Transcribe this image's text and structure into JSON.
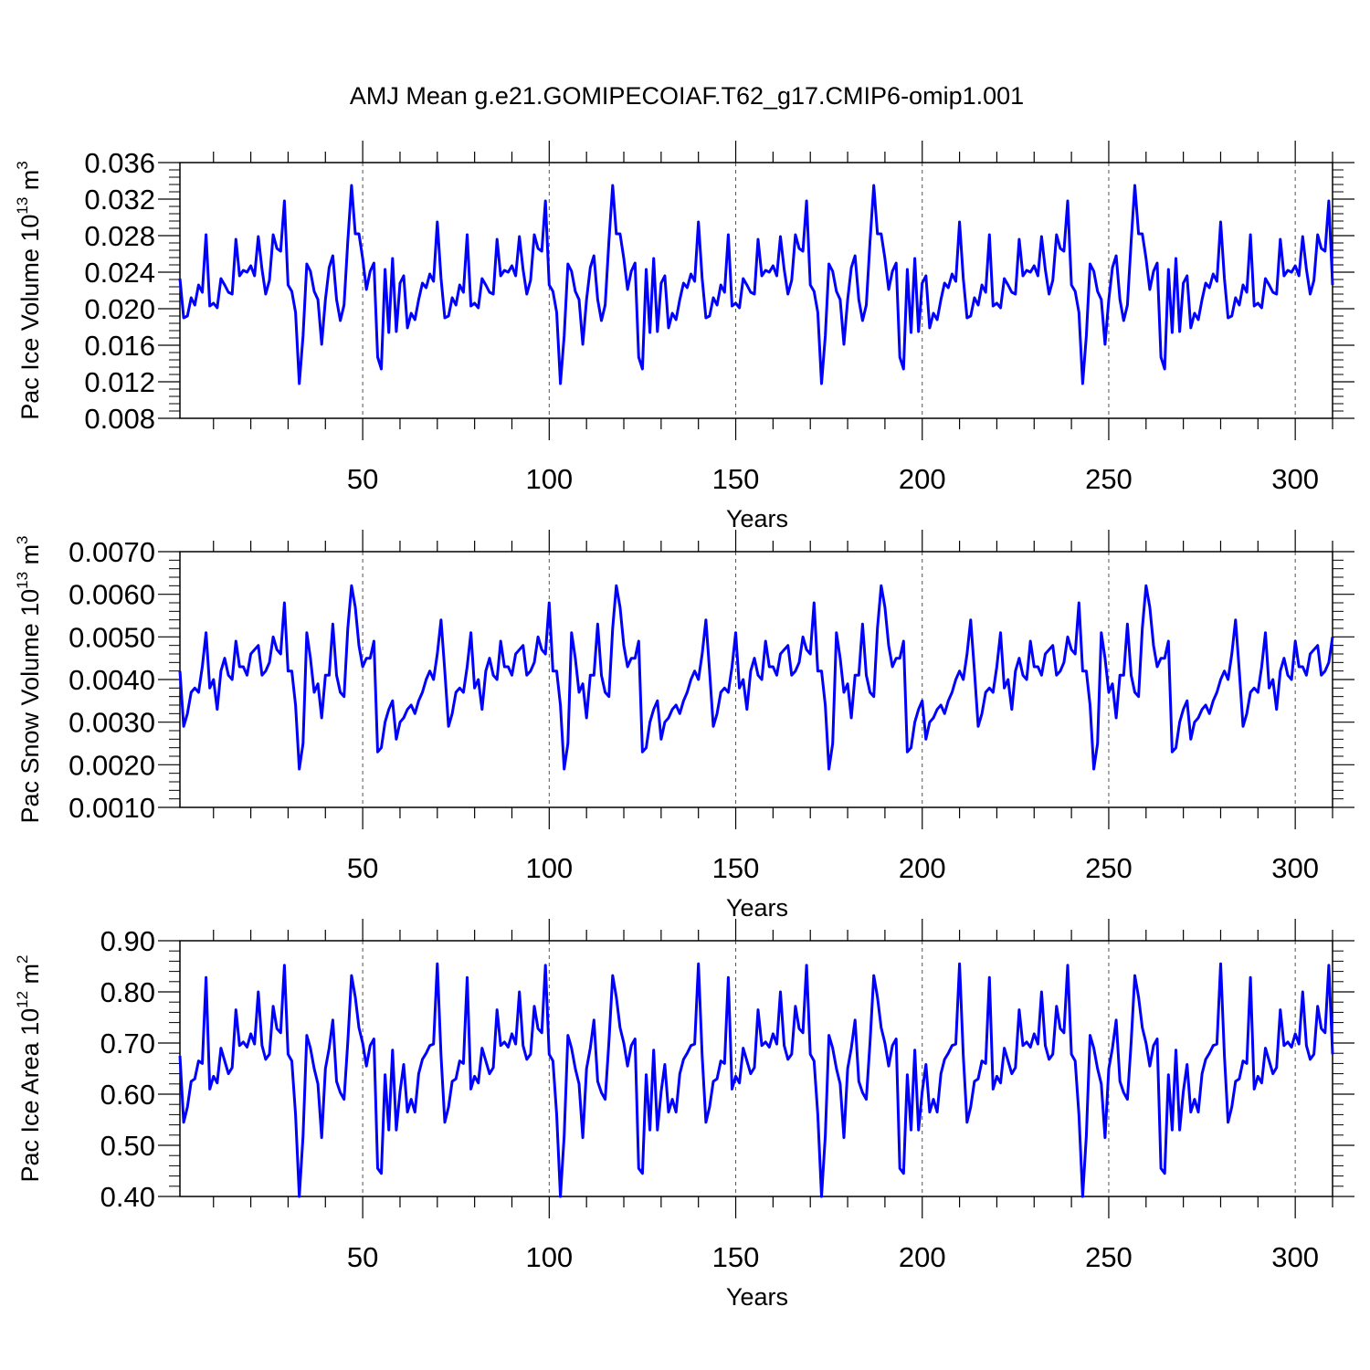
{
  "chart_data": [
    {
      "type": "line",
      "title": "AMJ Mean g.e21.GOMIPECOIAF.T62_g17.CMIP6-omip1.001",
      "xlabel": "Years",
      "ylabel": {
        "pre": "Pac Ice Volume 10",
        "sup": "13",
        "post": " m",
        "sup2": "3"
      },
      "xlim": [
        1,
        310
      ],
      "ylim": [
        0.008,
        0.036
      ],
      "xticks": [
        50,
        100,
        150,
        200,
        250,
        300
      ],
      "xtick_labels": [
        "50",
        "100",
        "150",
        "200",
        "250",
        "300"
      ],
      "yticks": [
        0.008,
        0.012,
        0.016,
        0.02,
        0.024,
        0.028,
        0.032,
        0.036
      ],
      "ytick_labels": [
        "0.008",
        "0.012",
        "0.016",
        "0.020",
        "0.024",
        "0.028",
        "0.032",
        "0.036"
      ],
      "grid": "dashed vertical at major x ticks",
      "line_color": "#0000ff",
      "series": [
        {
          "name": "Pac Ice Volume",
          "template": [
            0.0233,
            0.019,
            0.0192,
            0.0212,
            0.0204,
            0.0226,
            0.0218,
            0.0281,
            0.0203,
            0.0206,
            0.0201,
            0.0233,
            0.0226,
            0.0218,
            0.0216,
            0.0276,
            0.0236,
            0.0242,
            0.024,
            0.0247,
            0.0236,
            0.0279,
            0.0243,
            0.0216,
            0.0231,
            0.0281,
            0.0266,
            0.0263,
            0.0318,
            0.0226,
            0.0219,
            0.0196,
            0.0118,
            0.017,
            0.0249,
            0.0241,
            0.0219,
            0.021,
            0.0161,
            0.021,
            0.0245,
            0.0258,
            0.021,
            0.0187,
            0.0204,
            0.0274,
            0.0335,
            0.0282,
            0.0282,
            0.0255,
            0.0221,
            0.0241,
            0.025,
            0.0147,
            0.0134,
            0.0243,
            0.0174,
            0.0255,
            0.0175,
            0.0228,
            0.0236,
            0.0179,
            0.0195,
            0.0188,
            0.021,
            0.0228,
            0.0223,
            0.0238,
            0.023,
            0.0295
          ]
        }
      ]
    },
    {
      "type": "line",
      "title": "",
      "xlabel": "Years",
      "ylabel": {
        "pre": "Pac Snow Volume 10",
        "sup": "13",
        "post": " m",
        "sup2": "3"
      },
      "xlim": [
        1,
        310
      ],
      "ylim": [
        0.001,
        0.007
      ],
      "xticks": [
        50,
        100,
        150,
        200,
        250,
        300
      ],
      "xtick_labels": [
        "50",
        "100",
        "150",
        "200",
        "250",
        "300"
      ],
      "yticks": [
        0.001,
        0.002,
        0.003,
        0.004,
        0.005,
        0.006,
        0.007
      ],
      "ytick_labels": [
        "0.0010",
        "0.0020",
        "0.0030",
        "0.0040",
        "0.0050",
        "0.0060",
        "0.0070"
      ],
      "grid": "dashed vertical at major x ticks",
      "line_color": "#0000ff",
      "series": [
        {
          "name": "Pac Snow Volume",
          "template": [
            0.0042,
            0.0029,
            0.0032,
            0.0037,
            0.0038,
            0.0037,
            0.0043,
            0.0051,
            0.0038,
            0.004,
            0.0033,
            0.0042,
            0.0045,
            0.0041,
            0.004,
            0.0049,
            0.0043,
            0.0043,
            0.0041,
            0.0046,
            0.0047,
            0.0048,
            0.0041,
            0.0042,
            0.0044,
            0.005,
            0.0047,
            0.0046,
            0.0058,
            0.0042,
            0.0042,
            0.0034,
            0.0019,
            0.0025,
            0.0051,
            0.0045,
            0.0037,
            0.0039,
            0.0031,
            0.0041,
            0.0041,
            0.0053,
            0.0041,
            0.0037,
            0.0036,
            0.0052,
            0.0062,
            0.0057,
            0.0048,
            0.0043,
            0.0045,
            0.0045,
            0.0049,
            0.0023,
            0.0024,
            0.003,
            0.0033,
            0.0035,
            0.0026,
            0.003,
            0.0031,
            0.0033,
            0.0034,
            0.0032,
            0.0035,
            0.0037,
            0.004,
            0.0042,
            0.004,
            0.0046,
            0.0054
          ]
        }
      ]
    },
    {
      "type": "line",
      "title": "",
      "xlabel": "Years",
      "ylabel": {
        "pre": "Pac Ice Area 10",
        "sup": "12",
        "post": " m",
        "sup2": "2"
      },
      "xlim": [
        1,
        310
      ],
      "ylim": [
        0.4,
        0.9
      ],
      "xticks": [
        50,
        100,
        150,
        200,
        250,
        300
      ],
      "xtick_labels": [
        "50",
        "100",
        "150",
        "200",
        "250",
        "300"
      ],
      "yticks": [
        0.4,
        0.5,
        0.6,
        0.7,
        0.8,
        0.9
      ],
      "ytick_labels": [
        "0.40",
        "0.50",
        "0.60",
        "0.70",
        "0.80",
        "0.90"
      ],
      "grid": "dashed vertical at major x ticks",
      "line_color": "#0000ff",
      "series": [
        {
          "name": "Pac Ice Area",
          "template": [
            0.675,
            0.545,
            0.575,
            0.625,
            0.63,
            0.665,
            0.66,
            0.828,
            0.61,
            0.635,
            0.622,
            0.69,
            0.665,
            0.64,
            0.652,
            0.765,
            0.695,
            0.702,
            0.692,
            0.718,
            0.698,
            0.8,
            0.695,
            0.668,
            0.678,
            0.772,
            0.728,
            0.72,
            0.852,
            0.678,
            0.665,
            0.56,
            0.4,
            0.518,
            0.715,
            0.69,
            0.65,
            0.62,
            0.515,
            0.65,
            0.69,
            0.745,
            0.625,
            0.603,
            0.59,
            0.702,
            0.832,
            0.79,
            0.73,
            0.7,
            0.655,
            0.695,
            0.708,
            0.455,
            0.445,
            0.638,
            0.53,
            0.686,
            0.53,
            0.605,
            0.658,
            0.565,
            0.59,
            0.565,
            0.64,
            0.668,
            0.68,
            0.695,
            0.698,
            0.855
          ]
        }
      ]
    }
  ]
}
